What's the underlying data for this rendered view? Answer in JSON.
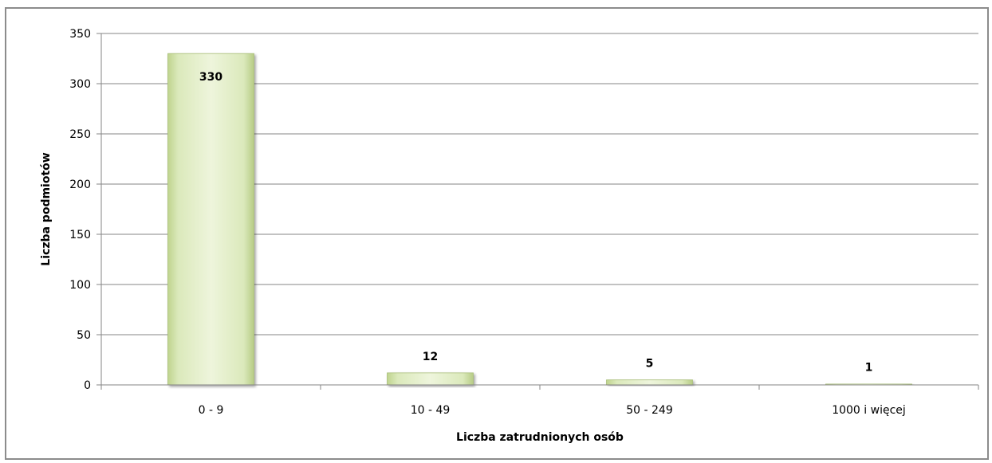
{
  "chart_data": {
    "type": "bar",
    "title": "",
    "xlabel": "Liczba zatrudnionych osób",
    "ylabel": "Liczba podmiotów",
    "categories": [
      "0 - 9",
      "10 - 49",
      "50 - 249",
      "1000 i więcej"
    ],
    "values": [
      330,
      12,
      5,
      1
    ],
    "data_labels": [
      "330",
      "12",
      "5",
      "1"
    ],
    "ylim": [
      0,
      350
    ],
    "yticks": [
      "0",
      "50",
      "100",
      "150",
      "200",
      "250",
      "300",
      "350"
    ],
    "grid": true,
    "legend": "none",
    "bar_color": "#d8e8b4"
  }
}
